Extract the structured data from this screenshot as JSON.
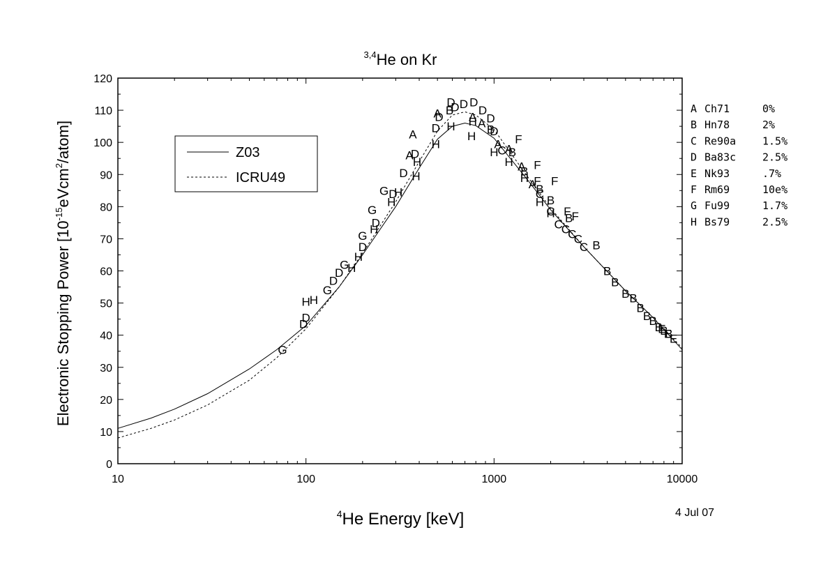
{
  "chart_data": {
    "type": "scatter",
    "title_sup": "3,4",
    "title_main": "He on Kr",
    "xlabel_sup": "4",
    "xlabel_main": "He Energy [keV]",
    "ylabel_a": "Electronic Stopping Power [10",
    "ylabel_exp1": "-15",
    "ylabel_b": "eVcm",
    "ylabel_exp2": "2",
    "ylabel_c": "/atom]",
    "date": "4 Jul 07",
    "xscale": "log",
    "xlim": [
      10,
      10000
    ],
    "ylim": [
      0,
      120
    ],
    "x_ticks": [
      10,
      100,
      1000,
      10000
    ],
    "x_tick_labels": [
      "10",
      "100",
      "1000",
      "10000"
    ],
    "y_ticks": [
      0,
      10,
      20,
      30,
      40,
      50,
      60,
      70,
      80,
      90,
      100,
      110,
      120
    ],
    "y_tick_labels": [
      "0",
      "10",
      "20",
      "30",
      "40",
      "50",
      "60",
      "70",
      "80",
      "90",
      "100",
      "110",
      "120"
    ],
    "legend_placement": "upper-left",
    "lines": [
      {
        "name": "Z03",
        "style": "solid",
        "x": [
          10,
          15,
          20,
          30,
          50,
          70,
          100,
          150,
          200,
          300,
          400,
          500,
          600,
          700,
          800,
          1000,
          1500,
          2000,
          3000,
          5000,
          7000,
          10000
        ],
        "y": [
          11,
          14.2,
          17,
          21.8,
          29.5,
          35.5,
          43,
          55,
          65,
          80,
          92,
          101,
          105,
          106,
          105.2,
          101.3,
          88.5,
          79,
          67.5,
          53.8,
          45.5,
          35.5
        ]
      },
      {
        "name": "ICRU49",
        "style": "dashed",
        "x": [
          10,
          15,
          20,
          30,
          50,
          70,
          100,
          150,
          200,
          300,
          400,
          500,
          600,
          700,
          800,
          1000,
          1500,
          2000,
          3000,
          5000,
          7000,
          10000
        ],
        "y": [
          8,
          11,
          13.6,
          18.3,
          26,
          33,
          42,
          55,
          65.5,
          81.5,
          94,
          103.5,
          108.5,
          109.5,
          108.5,
          104,
          89.5,
          79.5,
          67.5,
          53.8,
          45.5,
          36
        ]
      }
    ],
    "points": [
      {
        "l": "A",
        "x": 370,
        "y": 102.5
      },
      {
        "l": "A",
        "x": 355,
        "y": 96
      },
      {
        "l": "A",
        "x": 500,
        "y": 109
      },
      {
        "l": "A",
        "x": 770,
        "y": 108
      },
      {
        "l": "A",
        "x": 860,
        "y": 106
      },
      {
        "l": "A",
        "x": 1050,
        "y": 99.5
      },
      {
        "l": "A",
        "x": 1200,
        "y": 98
      },
      {
        "l": "A",
        "x": 1400,
        "y": 92.5
      },
      {
        "l": "A",
        "x": 1600,
        "y": 87
      },
      {
        "l": "B",
        "x": 580,
        "y": 110
      },
      {
        "l": "B",
        "x": 960,
        "y": 104
      },
      {
        "l": "B",
        "x": 1250,
        "y": 97
      },
      {
        "l": "B",
        "x": 1450,
        "y": 91
      },
      {
        "l": "B",
        "x": 1750,
        "y": 85.5
      },
      {
        "l": "B",
        "x": 2000,
        "y": 82
      },
      {
        "l": "B",
        "x": 2500,
        "y": 76.5
      },
      {
        "l": "B",
        "x": 3500,
        "y": 68
      },
      {
        "l": "B",
        "x": 4000,
        "y": 60
      },
      {
        "l": "B",
        "x": 4400,
        "y": 56.5
      },
      {
        "l": "B",
        "x": 5000,
        "y": 53
      },
      {
        "l": "B",
        "x": 5500,
        "y": 51.5
      },
      {
        "l": "B",
        "x": 6000,
        "y": 48.5
      },
      {
        "l": "B",
        "x": 6500,
        "y": 46
      },
      {
        "l": "B",
        "x": 7000,
        "y": 44.5
      },
      {
        "l": "B",
        "x": 7500,
        "y": 42.5
      },
      {
        "l": "B",
        "x": 8000,
        "y": 41.5
      },
      {
        "l": "B",
        "x": 8500,
        "y": 40.5
      },
      {
        "l": "C",
        "x": 1100,
        "y": 97.5
      },
      {
        "l": "C",
        "x": 1750,
        "y": 84
      },
      {
        "l": "C",
        "x": 2000,
        "y": 78.5
      },
      {
        "l": "C",
        "x": 2200,
        "y": 74.5
      },
      {
        "l": "C",
        "x": 2400,
        "y": 73
      },
      {
        "l": "C",
        "x": 2600,
        "y": 71.5
      },
      {
        "l": "C",
        "x": 2800,
        "y": 70
      },
      {
        "l": "C",
        "x": 3000,
        "y": 67.5
      },
      {
        "l": "D",
        "x": 97,
        "y": 43.5
      },
      {
        "l": "D",
        "x": 100,
        "y": 45.5
      },
      {
        "l": "D",
        "x": 140,
        "y": 57
      },
      {
        "l": "D",
        "x": 150,
        "y": 59.5
      },
      {
        "l": "D",
        "x": 200,
        "y": 67.5
      },
      {
        "l": "D",
        "x": 235,
        "y": 75
      },
      {
        "l": "D",
        "x": 290,
        "y": 84
      },
      {
        "l": "D",
        "x": 330,
        "y": 90.5
      },
      {
        "l": "D",
        "x": 380,
        "y": 96.5
      },
      {
        "l": "D",
        "x": 490,
        "y": 104.5
      },
      {
        "l": "D",
        "x": 510,
        "y": 108
      },
      {
        "l": "D",
        "x": 590,
        "y": 112.5
      },
      {
        "l": "D",
        "x": 620,
        "y": 111
      },
      {
        "l": "D",
        "x": 690,
        "y": 112
      },
      {
        "l": "D",
        "x": 780,
        "y": 112.5
      },
      {
        "l": "D",
        "x": 870,
        "y": 110
      },
      {
        "l": "D",
        "x": 960,
        "y": 107.5
      },
      {
        "l": "D",
        "x": 1000,
        "y": 103.5
      },
      {
        "l": "E",
        "x": 7800,
        "y": 42
      },
      {
        "l": "E",
        "x": 8400,
        "y": 40.5
      },
      {
        "l": "E",
        "x": 9000,
        "y": 39
      },
      {
        "l": "F",
        "x": 1350,
        "y": 101
      },
      {
        "l": "F",
        "x": 1700,
        "y": 93
      },
      {
        "l": "F",
        "x": 2100,
        "y": 88
      },
      {
        "l": "F",
        "x": 2450,
        "y": 78.5
      },
      {
        "l": "F",
        "x": 2700,
        "y": 77
      },
      {
        "l": "F",
        "x": 1700,
        "y": 88
      },
      {
        "l": "G",
        "x": 75,
        "y": 35.5
      },
      {
        "l": "G",
        "x": 130,
        "y": 54
      },
      {
        "l": "G",
        "x": 160,
        "y": 62
      },
      {
        "l": "G",
        "x": 200,
        "y": 71
      },
      {
        "l": "G",
        "x": 225,
        "y": 79
      },
      {
        "l": "G",
        "x": 260,
        "y": 85
      },
      {
        "l": "H",
        "x": 100,
        "y": 50.5
      },
      {
        "l": "H",
        "x": 110,
        "y": 51
      },
      {
        "l": "H",
        "x": 175,
        "y": 61
      },
      {
        "l": "H",
        "x": 190,
        "y": 64.5
      },
      {
        "l": "H",
        "x": 230,
        "y": 73
      },
      {
        "l": "H",
        "x": 285,
        "y": 81.5
      },
      {
        "l": "H",
        "x": 310,
        "y": 84.5
      },
      {
        "l": "H",
        "x": 385,
        "y": 89.5
      },
      {
        "l": "H",
        "x": 390,
        "y": 94
      },
      {
        "l": "H",
        "x": 490,
        "y": 99.5
      },
      {
        "l": "H",
        "x": 590,
        "y": 105
      },
      {
        "l": "H",
        "x": 760,
        "y": 102
      },
      {
        "l": "H",
        "x": 770,
        "y": 106.5
      },
      {
        "l": "H",
        "x": 1000,
        "y": 97
      },
      {
        "l": "H",
        "x": 1200,
        "y": 94
      },
      {
        "l": "H",
        "x": 1450,
        "y": 89
      },
      {
        "l": "H",
        "x": 1750,
        "y": 81.5
      },
      {
        "l": "H",
        "x": 2000,
        "y": 78
      }
    ],
    "legend": [
      {
        "name": "Z03",
        "style": "solid"
      },
      {
        "name": "ICRU49",
        "style": "dashed"
      }
    ],
    "refs": [
      {
        "letter": "A",
        "name": "Ch71",
        "val": "0%"
      },
      {
        "letter": "B",
        "name": "Hn78",
        "val": "2%"
      },
      {
        "letter": "C",
        "name": "Re90a",
        "val": "1.5%"
      },
      {
        "letter": "D",
        "name": "Ba83c",
        "val": "2.5%"
      },
      {
        "letter": "E",
        "name": "Nk93",
        "val": ".7%"
      },
      {
        "letter": "F",
        "name": "Rm69",
        "val": "10e%"
      },
      {
        "letter": "G",
        "name": "Fu99",
        "val": "1.7%"
      },
      {
        "letter": "H",
        "name": "Bs79",
        "val": "2.5%"
      }
    ]
  }
}
